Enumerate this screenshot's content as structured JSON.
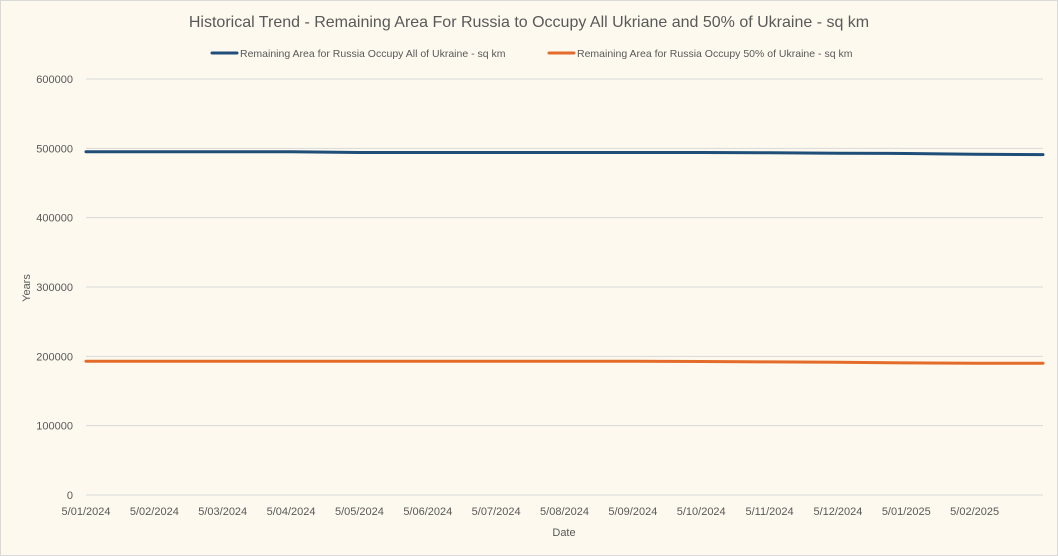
{
  "chart_data": {
    "type": "line",
    "title": "Historical Trend - Remaining Area For Russia to Occupy All Ukriane and 50% of Ukraine - sq km",
    "xlabel": "Date",
    "ylabel": "Years",
    "ylim": [
      0,
      600000
    ],
    "yticks": [
      "0",
      "100000",
      "200000",
      "300000",
      "400000",
      "500000",
      "600000"
    ],
    "x": [
      "5/01/2024",
      "5/02/2024",
      "5/03/2024",
      "5/04/2024",
      "5/05/2024",
      "5/06/2024",
      "5/07/2024",
      "5/08/2024",
      "5/09/2024",
      "5/10/2024",
      "5/11/2024",
      "5/12/2024",
      "5/01/2025",
      "5/02/2025",
      "5/03/2025"
    ],
    "xtick_labels": [
      "5/01/2024",
      "5/02/2024",
      "5/03/2024",
      "5/04/2024",
      "5/05/2024",
      "5/06/2024",
      "5/07/2024",
      "5/08/2024",
      "5/09/2024",
      "5/10/2024",
      "5/11/2024",
      "5/12/2024",
      "5/01/2025",
      "5/02/2025"
    ],
    "grid": true,
    "legend_position": "top",
    "series": [
      {
        "name": "Remaining Area for Russia Occupy All of Ukraine - sq km",
        "color": "#1F4E79",
        "values": [
          495000,
          495000,
          495000,
          495000,
          494000,
          494000,
          494000,
          494000,
          494000,
          494000,
          493500,
          493000,
          492500,
          491500,
          491000
        ]
      },
      {
        "name": "Remaining Area for Russia Occupy 50% of Ukraine - sq km",
        "color": "#E46C2A",
        "values": [
          193000,
          193000,
          193000,
          193000,
          193000,
          193000,
          193000,
          193000,
          193000,
          192500,
          192000,
          191500,
          190500,
          190000,
          190000
        ]
      }
    ]
  }
}
